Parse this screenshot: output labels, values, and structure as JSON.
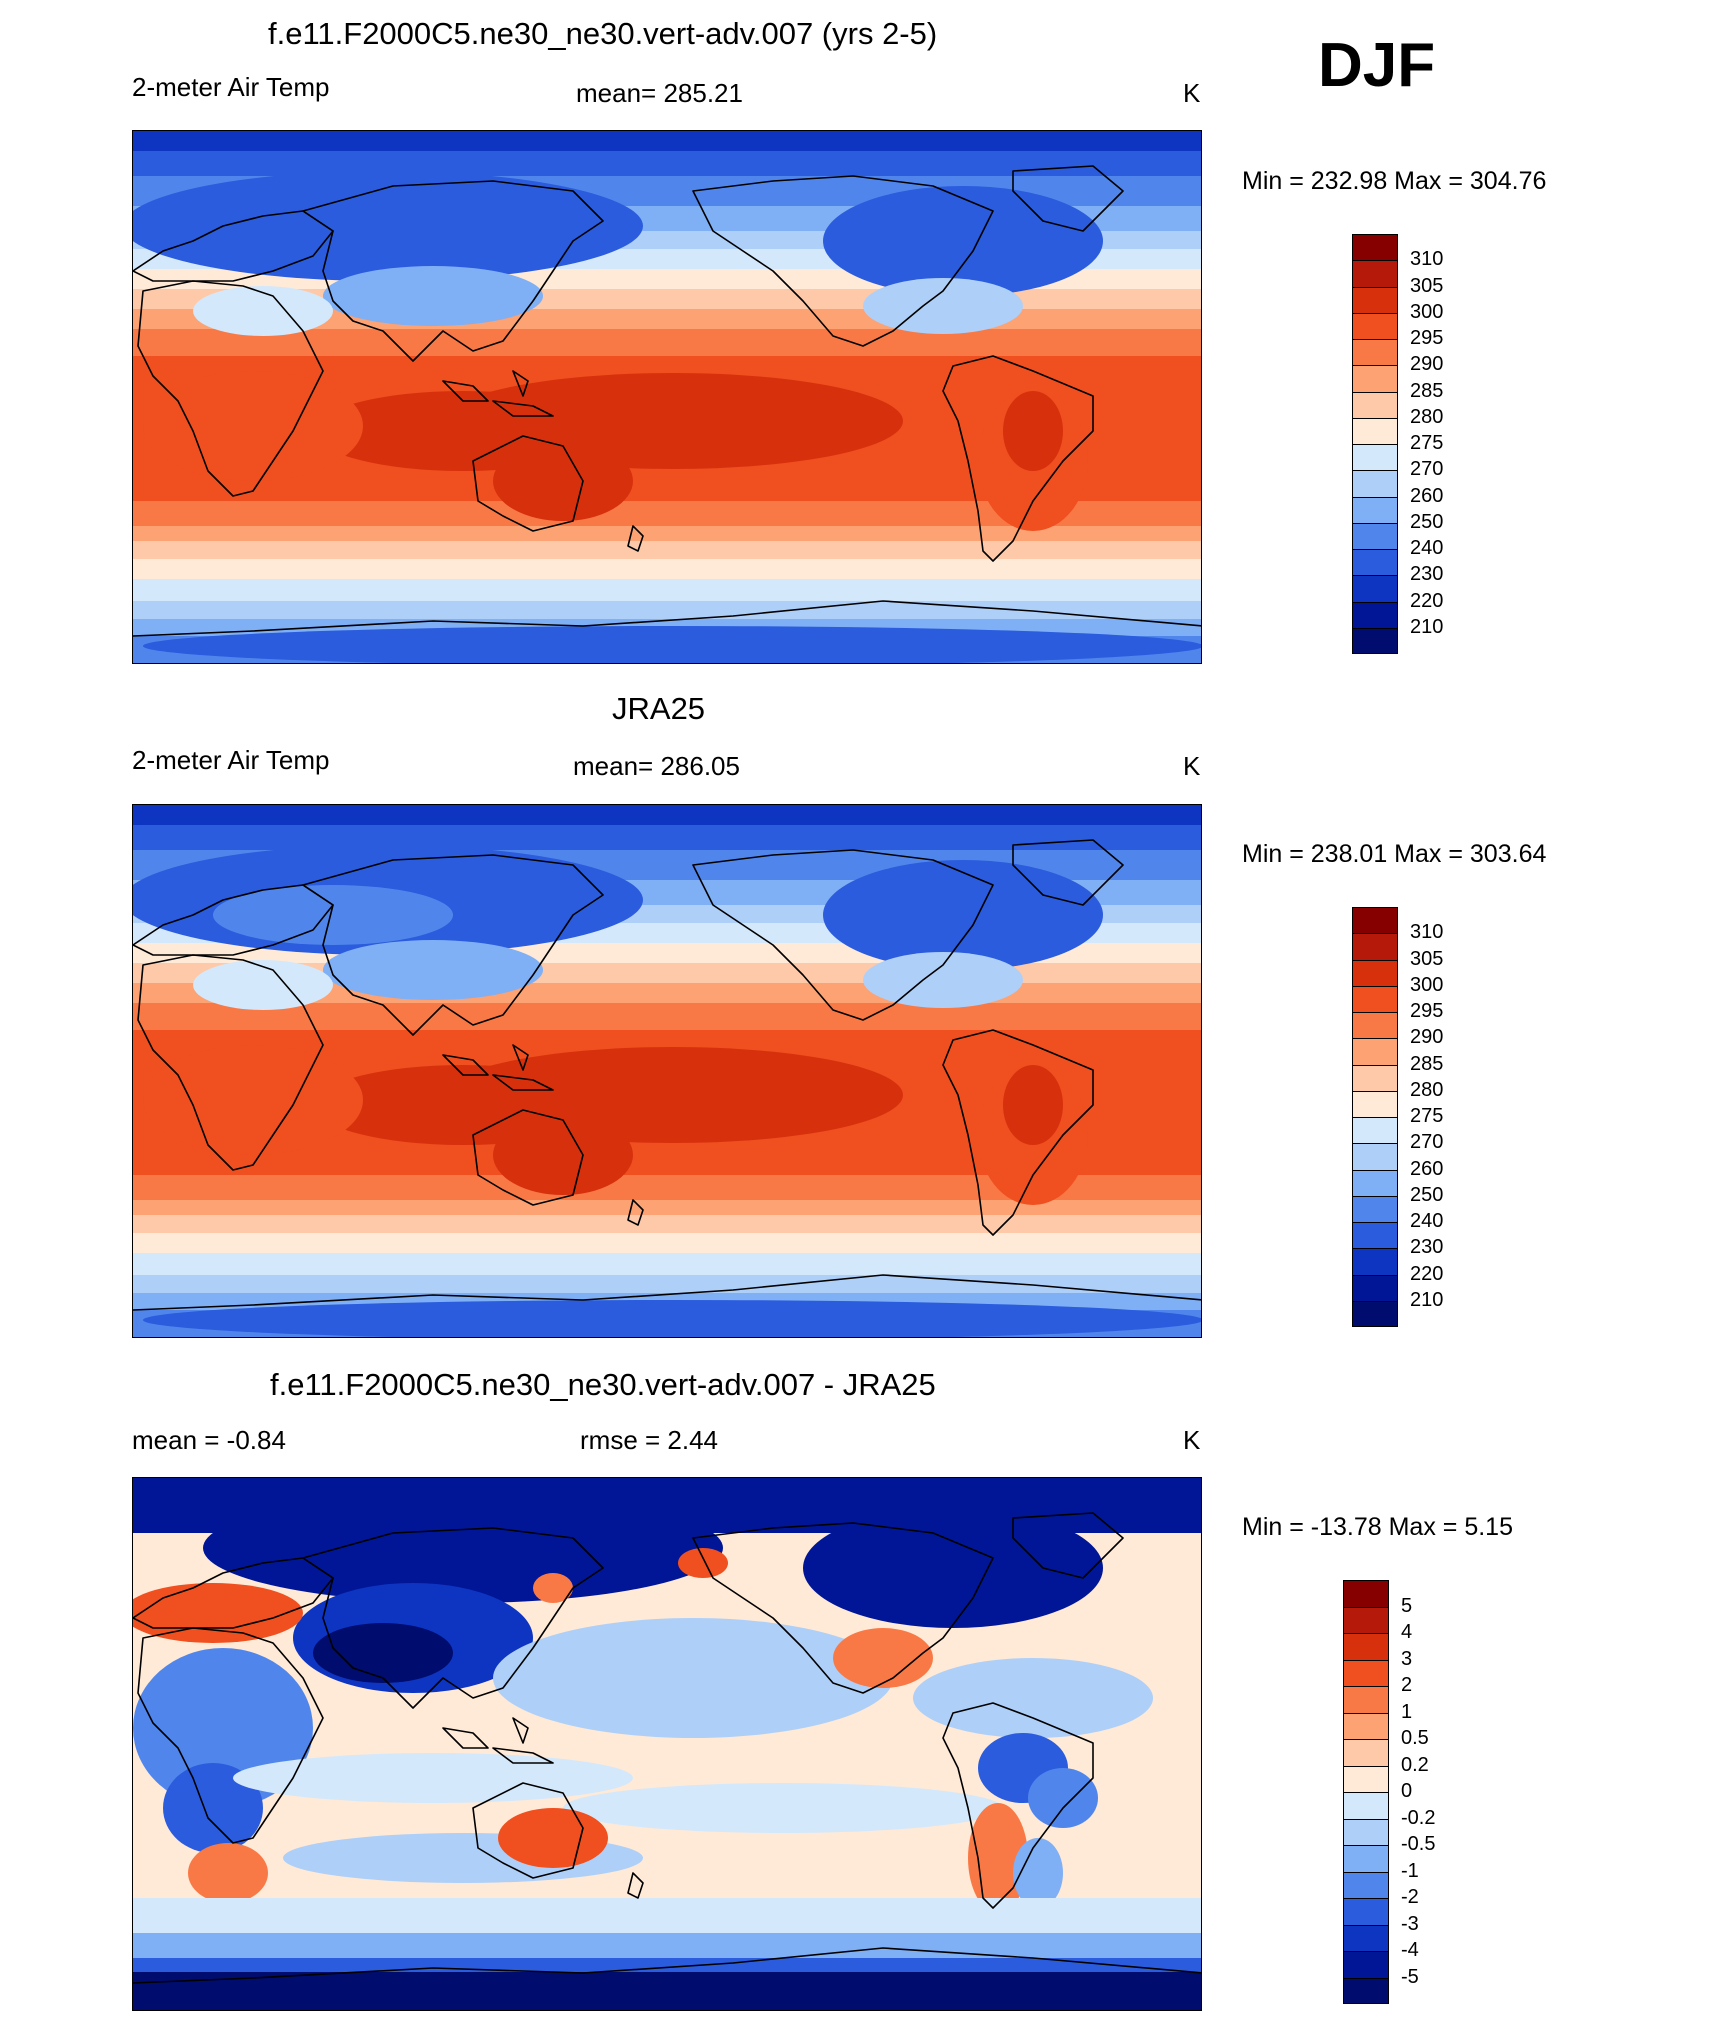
{
  "season": "DJF",
  "panels": [
    {
      "title": "f.e11.F2000C5.ne30_ne30.vert-adv.007 (yrs 2-5)",
      "left_label": "2-meter Air Temp",
      "center_label": "mean= 285.21",
      "units": "K",
      "minmax": "Min = 232.98 Max = 304.76",
      "kind": "temperature",
      "colorbar": {
        "labels": [
          "310",
          "305",
          "300",
          "295",
          "290",
          "285",
          "280",
          "275",
          "270",
          "260",
          "250",
          "240",
          "230",
          "220",
          "210"
        ],
        "colors": [
          "#870000",
          "#b4190a",
          "#d7300c",
          "#f04f1f",
          "#f97946",
          "#fca273",
          "#fdc9a9",
          "#feead7",
          "#d4e8fb",
          "#aecff8",
          "#7faff4",
          "#5086ec",
          "#2a5cdd",
          "#0d35c2",
          "#001696",
          "#000c6e"
        ]
      }
    },
    {
      "title": "JRA25",
      "left_label": "2-meter Air Temp",
      "center_label": "mean= 286.05",
      "units": "K",
      "minmax": "Min = 238.01 Max = 303.64",
      "kind": "temperature",
      "colorbar": {
        "labels": [
          "310",
          "305",
          "300",
          "295",
          "290",
          "285",
          "280",
          "275",
          "270",
          "260",
          "250",
          "240",
          "230",
          "220",
          "210"
        ],
        "colors": [
          "#870000",
          "#b4190a",
          "#d7300c",
          "#f04f1f",
          "#f97946",
          "#fca273",
          "#fdc9a9",
          "#feead7",
          "#d4e8fb",
          "#aecff8",
          "#7faff4",
          "#5086ec",
          "#2a5cdd",
          "#0d35c2",
          "#001696",
          "#000c6e"
        ]
      }
    },
    {
      "title": "f.e11.F2000C5.ne30_ne30.vert-adv.007 - JRA25",
      "left_label": "mean =  -0.84",
      "center_label": "rmse =   2.44",
      "units": "K",
      "minmax": "Min = -13.78 Max =   5.15",
      "kind": "difference",
      "colorbar": {
        "labels": [
          "5",
          "4",
          "3",
          "2",
          "1",
          "0.5",
          "0.2",
          "0",
          "-0.2",
          "-0.5",
          "-1",
          "-2",
          "-3",
          "-4",
          "-5"
        ],
        "colors": [
          "#870000",
          "#b4190a",
          "#d7300c",
          "#f04f1f",
          "#f97946",
          "#fca273",
          "#fdc9a9",
          "#feead7",
          "#d4e8fb",
          "#aecff8",
          "#7faff4",
          "#5086ec",
          "#2a5cdd",
          "#0d35c2",
          "#001696",
          "#000c6e"
        ]
      }
    }
  ]
}
